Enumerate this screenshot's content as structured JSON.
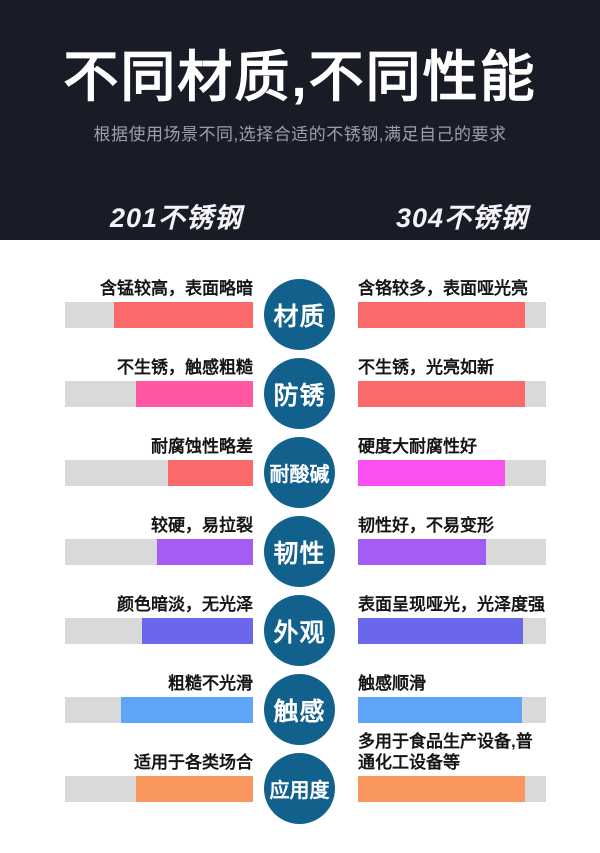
{
  "header": {
    "title": "不同材质,不同性能",
    "subtitle": "根据使用场景不同,选择合适的不锈钢,满足自己的要求",
    "left_column": "201不锈钢",
    "right_column": "304不锈钢",
    "bg_color": "#191c26"
  },
  "colors": {
    "page_bg": "#ffffff",
    "track_gray": "#d9d9d9",
    "badge_teal": "#12608c",
    "red": "#fa6a6a",
    "pink": "#ff57a1",
    "magenta": "#fb4ff0",
    "purple": "#a55cf5",
    "indigo": "#6a67ec",
    "blue": "#5fa5f7",
    "orange": "#f9975e"
  },
  "rows": [
    {
      "category": "材质",
      "left": {
        "label": "含锰较高，表面略暗",
        "fill_pct": 74,
        "color": "#fa6a6a"
      },
      "right": {
        "label": "含铬较多，表面哑光亮",
        "fill_pct": 89,
        "color": "#fa6a6a"
      }
    },
    {
      "category": "防锈",
      "left": {
        "label": "不生锈，触感粗糙",
        "fill_pct": 62,
        "color": "#ff57a1"
      },
      "right": {
        "label": "不生锈，光亮如新",
        "fill_pct": 89,
        "color": "#fa6a6a"
      }
    },
    {
      "category": "耐酸碱",
      "left": {
        "label": "耐腐蚀性略差",
        "fill_pct": 45,
        "color": "#fa6a6a"
      },
      "right": {
        "label": "硬度大耐腐性好",
        "fill_pct": 78,
        "color": "#fb4ff0"
      }
    },
    {
      "category": "韧性",
      "left": {
        "label": "较硬，易拉裂",
        "fill_pct": 51,
        "color": "#a55cf5"
      },
      "right": {
        "label": "韧性好，不易变形",
        "fill_pct": 68,
        "color": "#a55cf5"
      }
    },
    {
      "category": "外观",
      "left": {
        "label": "颜色暗淡，无光泽",
        "fill_pct": 59,
        "color": "#6a67ec"
      },
      "right": {
        "label": "表面呈现哑光，光泽度强",
        "fill_pct": 88,
        "color": "#6a67ec"
      }
    },
    {
      "category": "触感",
      "left": {
        "label": "粗糙不光滑",
        "fill_pct": 70,
        "color": "#5fa5f7"
      },
      "right": {
        "label": "触感顺滑",
        "fill_pct": 87,
        "color": "#5fa5f7"
      }
    },
    {
      "category": "应用度",
      "left": {
        "label": "适用于各类场合",
        "fill_pct": 62,
        "color": "#f9975e"
      },
      "right": {
        "label": "多用于食品生产设备,普通化工设备等",
        "fill_pct": 89,
        "color": "#f9975e",
        "wrap": true
      }
    }
  ],
  "chart_data": {
    "type": "bar",
    "title": "不同材质,不同性能",
    "subtitle": "根据使用场景不同,选择合适的不锈钢,满足自己的要求",
    "categories": [
      "材质",
      "防锈",
      "耐酸碱",
      "韧性",
      "外观",
      "触感",
      "应用度"
    ],
    "series": [
      {
        "name": "201不锈钢",
        "values": [
          74,
          62,
          45,
          51,
          59,
          70,
          62
        ],
        "annotations": [
          "含锰较高，表面略暗",
          "不生锈，触感粗糙",
          "耐腐蚀性略差",
          "较硬，易拉裂",
          "颜色暗淡，无光泽",
          "粗糙不光滑",
          "适用于各类场合"
        ]
      },
      {
        "name": "304不锈钢",
        "values": [
          89,
          89,
          78,
          68,
          88,
          87,
          89
        ],
        "annotations": [
          "含铬较多，表面哑光亮",
          "不生锈，光亮如新",
          "硬度大耐腐性好",
          "韧性好，不易变形",
          "表面呈现哑光，光泽度强",
          "触感顺滑",
          "多用于食品生产设备,普通化工设备等"
        ]
      }
    ],
    "ylim": [
      0,
      100
    ],
    "unit": "relative fill percent of track",
    "grid": false,
    "legend_position": "column headers above chart"
  }
}
